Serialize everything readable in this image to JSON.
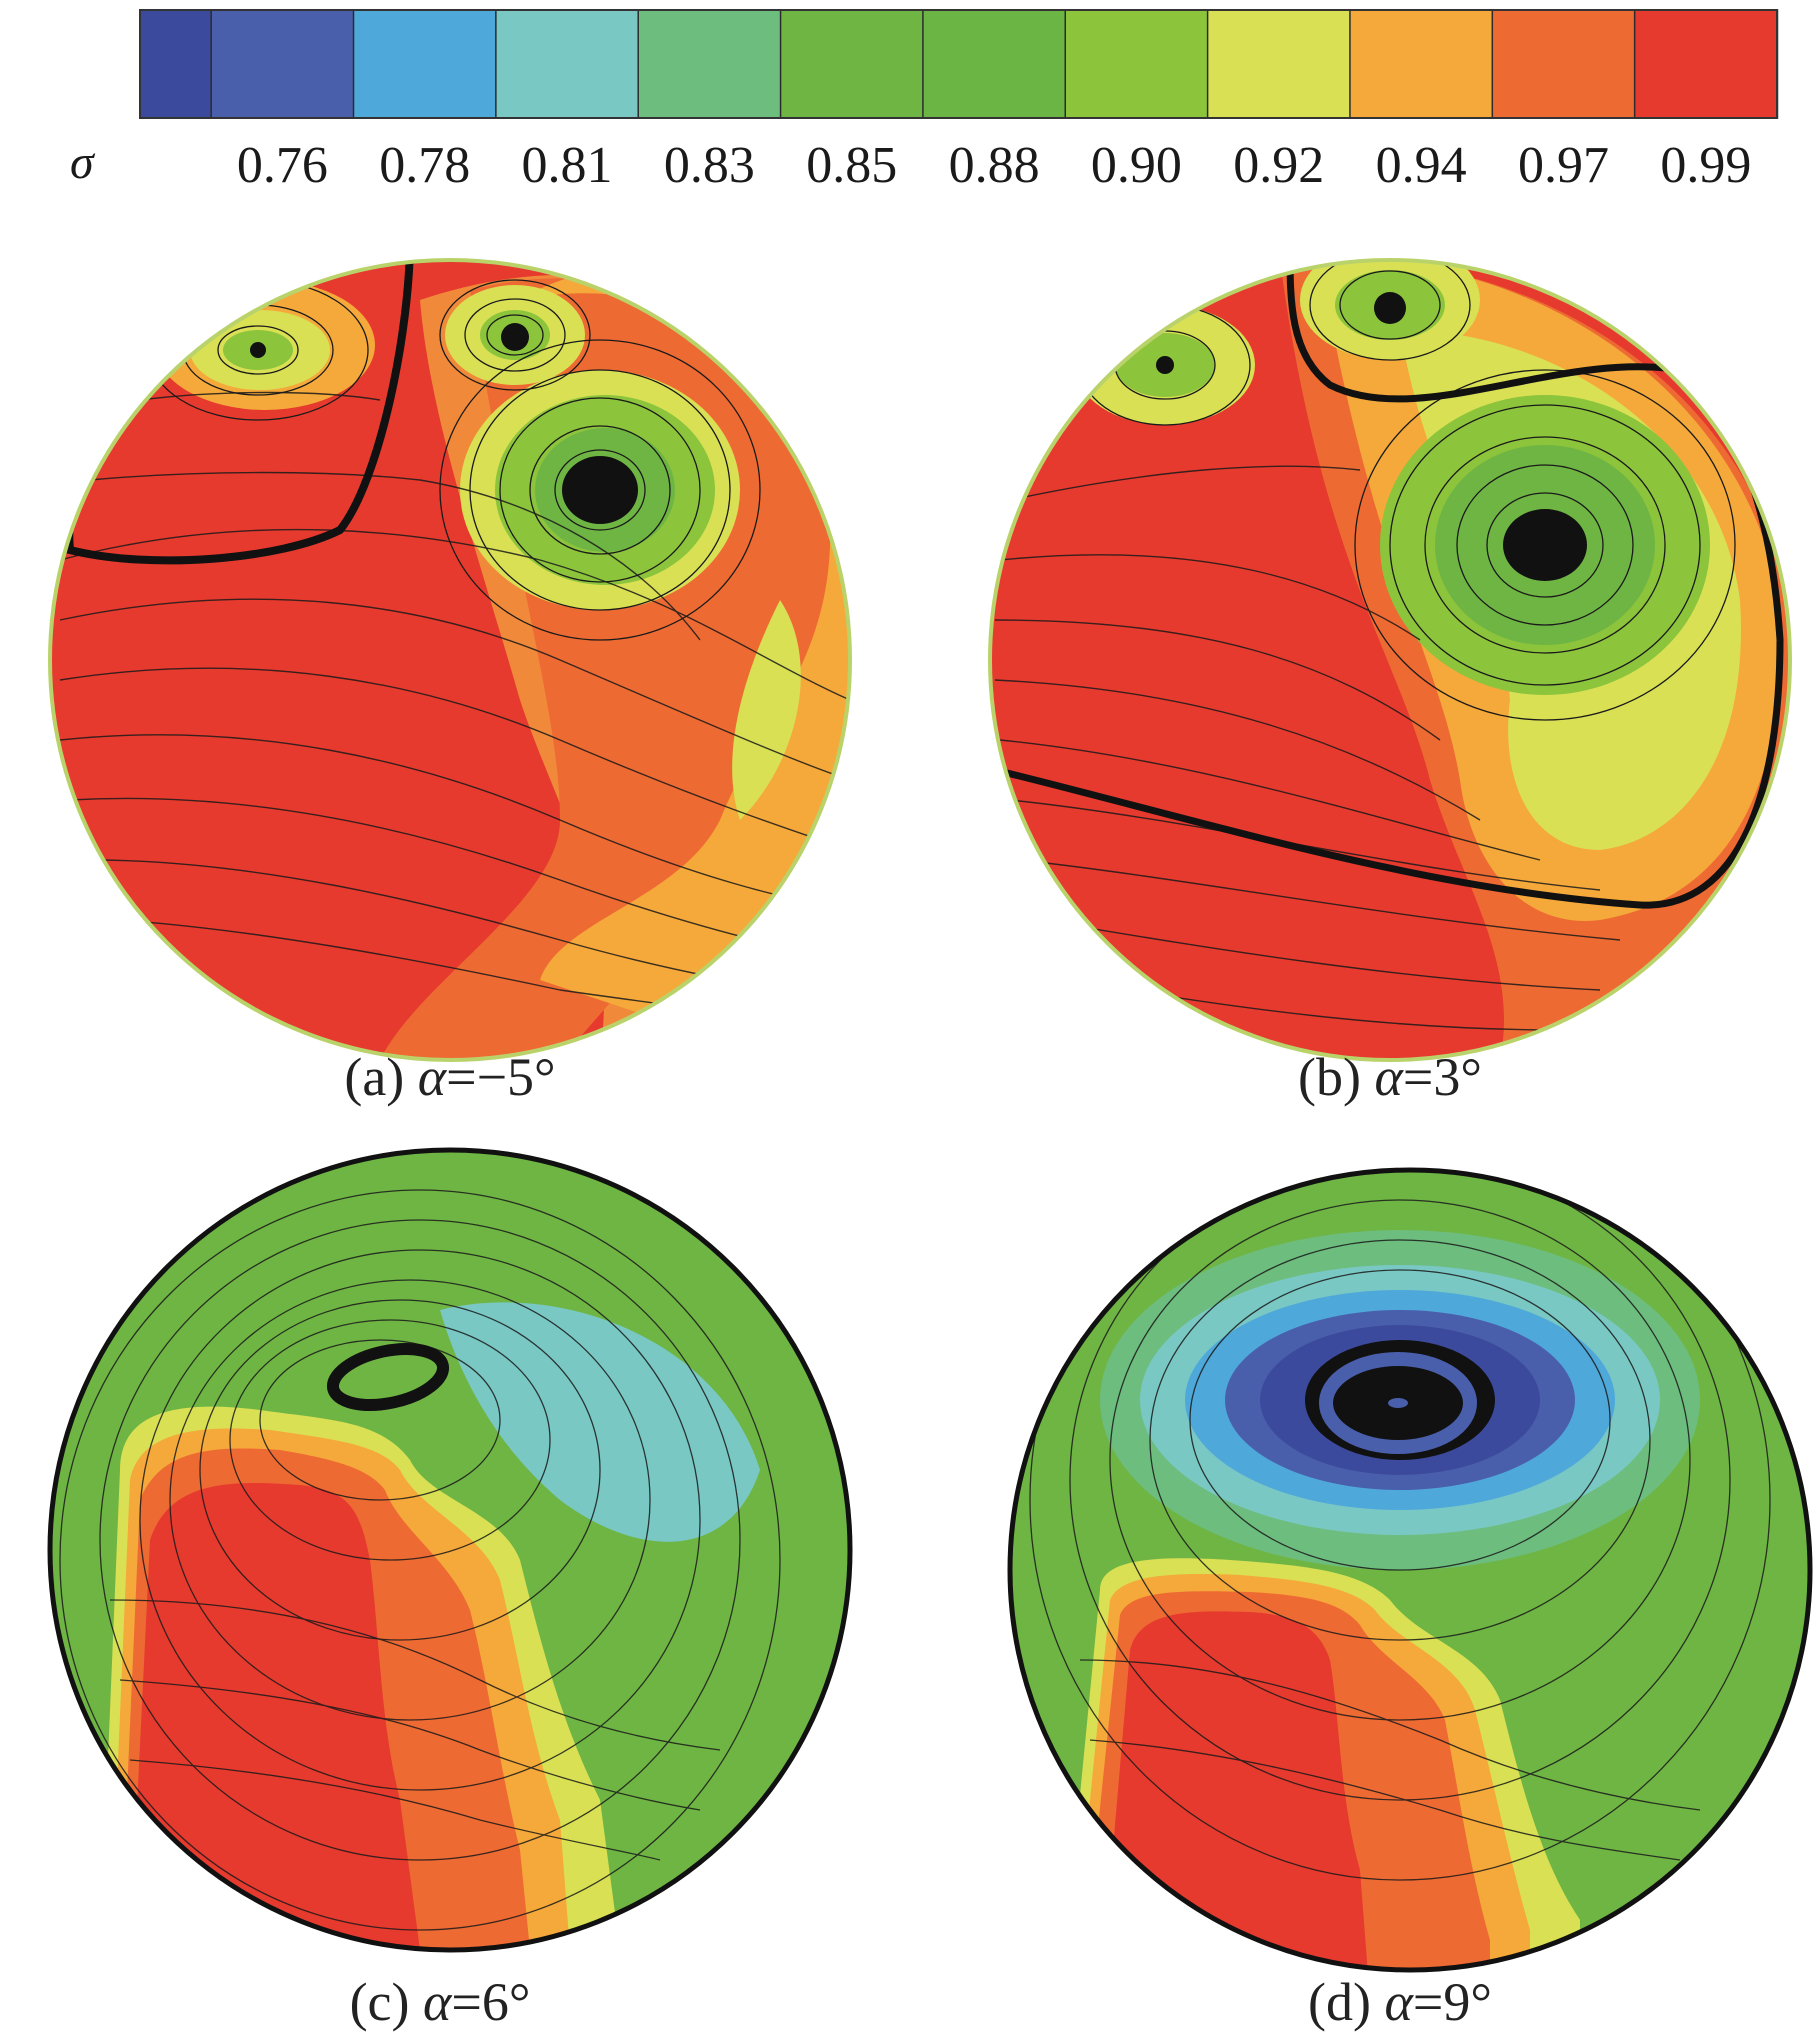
{
  "colorbar": {
    "symbol": "σ",
    "ticks": [
      "0.76",
      "0.78",
      "0.81",
      "0.83",
      "0.85",
      "0.88",
      "0.90",
      "0.92",
      "0.94",
      "0.97",
      "0.99"
    ],
    "colors": [
      "#3b4a9c",
      "#4a5fac",
      "#4fa8da",
      "#79c8c4",
      "#6dbd7e",
      "#6fb544",
      "#6bb544",
      "#8cc43c",
      "#d9e054",
      "#f5a93a",
      "#ee6a33",
      "#e63a2e"
    ]
  },
  "panels": [
    {
      "id": "a",
      "caption_prefix": "(a) ",
      "caption_var": "α",
      "caption_value": "=−5°"
    },
    {
      "id": "b",
      "caption_prefix": "(b) ",
      "caption_var": "α",
      "caption_value": "=3°"
    },
    {
      "id": "c",
      "caption_prefix": "(c) ",
      "caption_var": "α",
      "caption_value": "=6°"
    },
    {
      "id": "d",
      "caption_prefix": "(d) ",
      "caption_var": "α",
      "caption_value": "=9°"
    }
  ]
}
